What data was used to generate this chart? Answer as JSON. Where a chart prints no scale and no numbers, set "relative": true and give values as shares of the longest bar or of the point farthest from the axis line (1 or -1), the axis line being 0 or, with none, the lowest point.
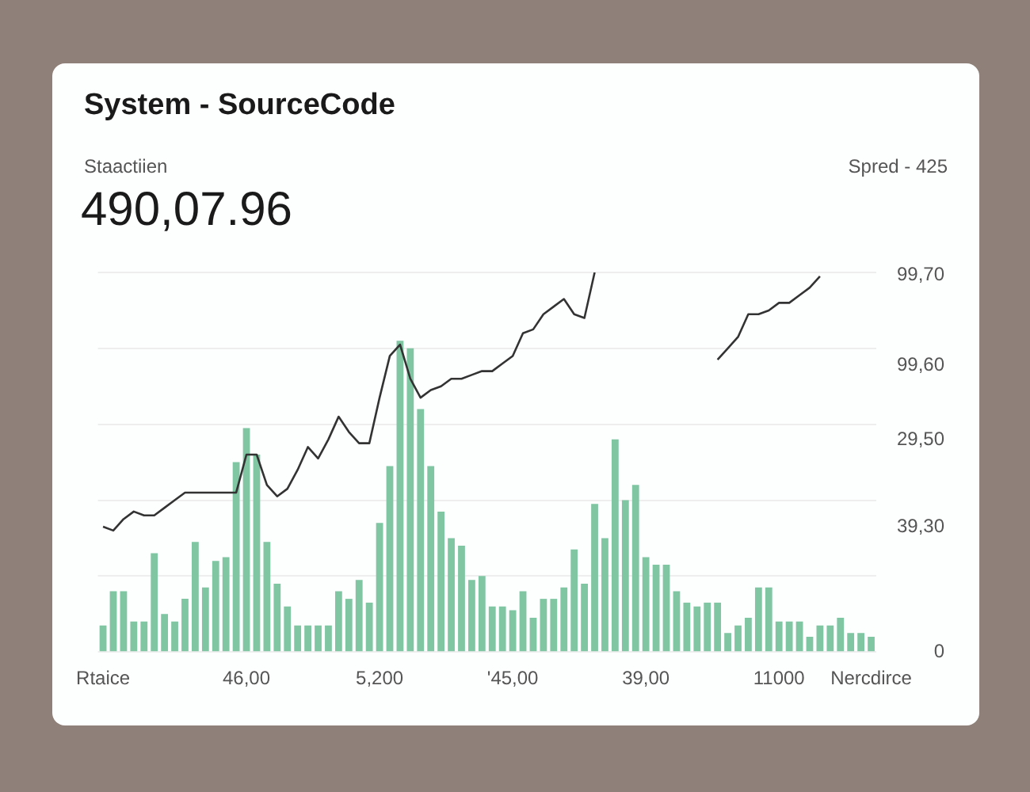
{
  "chart_data": {
    "type": "bar",
    "title": "System - SourceCode",
    "subtitle": "Staactiien",
    "annotations": [
      "490,07.96",
      "Spred - 425",
      "99,70",
      "99,60",
      "29,50",
      "39,30",
      "0"
    ],
    "relative": true,
    "categories": [
      "Rtaice",
      null,
      null,
      null,
      null,
      null,
      null,
      null,
      null,
      null,
      null,
      null,
      null,
      null,
      "46,00",
      null,
      null,
      null,
      null,
      null,
      null,
      null,
      null,
      null,
      null,
      null,
      null,
      "5,200",
      null,
      null,
      null,
      null,
      null,
      null,
      null,
      null,
      null,
      null,
      null,
      null,
      "'45,00",
      null,
      null,
      null,
      null,
      null,
      null,
      null,
      null,
      null,
      null,
      null,
      null,
      "39,00",
      null,
      null,
      null,
      null,
      null,
      null,
      null,
      null,
      null,
      null,
      null,
      null,
      "11000",
      null,
      null,
      null,
      null,
      null,
      null,
      null,
      null,
      "Nercdirce"
    ],
    "series": [
      {
        "type": "line",
        "color": "#333333",
        "values": [
          0.33,
          0.32,
          0.35,
          0.37,
          0.36,
          0.36,
          0.38,
          0.4,
          0.42,
          0.42,
          0.42,
          0.42,
          0.42,
          0.42,
          0.52,
          0.52,
          0.44,
          0.41,
          0.43,
          0.48,
          0.54,
          0.51,
          0.56,
          0.62,
          0.58,
          0.55,
          0.55,
          0.67,
          0.78,
          0.81,
          0.72,
          0.67,
          0.69,
          0.7,
          0.72,
          0.72,
          0.73,
          0.74,
          0.74,
          0.76,
          0.78,
          0.84,
          0.85,
          0.89,
          0.91,
          0.93,
          0.89,
          0.88,
          1.0,
          null,
          null,
          null,
          null,
          null,
          null,
          null,
          null,
          null,
          null,
          null,
          0.77,
          0.8,
          0.83,
          0.89,
          0.89,
          0.9,
          0.92,
          0.92,
          0.94,
          0.96,
          0.99,
          null,
          null,
          null,
          null,
          null
        ]
      },
      {
        "color": "#80c6a3",
        "values": [
          0.07,
          0.16,
          0.16,
          0.08,
          0.08,
          0.26,
          0.1,
          0.08,
          0.14,
          0.29,
          0.17,
          0.24,
          0.25,
          0.5,
          0.59,
          0.52,
          0.29,
          0.18,
          0.12,
          0.07,
          0.07,
          0.07,
          0.07,
          0.16,
          0.14,
          0.19,
          0.13,
          0.34,
          0.49,
          0.82,
          0.8,
          0.64,
          0.49,
          0.37,
          0.3,
          0.28,
          0.19,
          0.2,
          0.12,
          0.12,
          0.11,
          0.16,
          0.09,
          0.14,
          0.14,
          0.17,
          0.27,
          0.18,
          0.39,
          0.3,
          0.56,
          0.4,
          0.44,
          0.25,
          0.23,
          0.23,
          0.16,
          0.13,
          0.12,
          0.13,
          0.13,
          0.05,
          0.07,
          0.09,
          0.17,
          0.17,
          0.08,
          0.08,
          0.08,
          0.04,
          0.07,
          0.07,
          0.09,
          0.05,
          0.05,
          0.04
        ]
      }
    ],
    "grid": "y",
    "legend": false
  }
}
